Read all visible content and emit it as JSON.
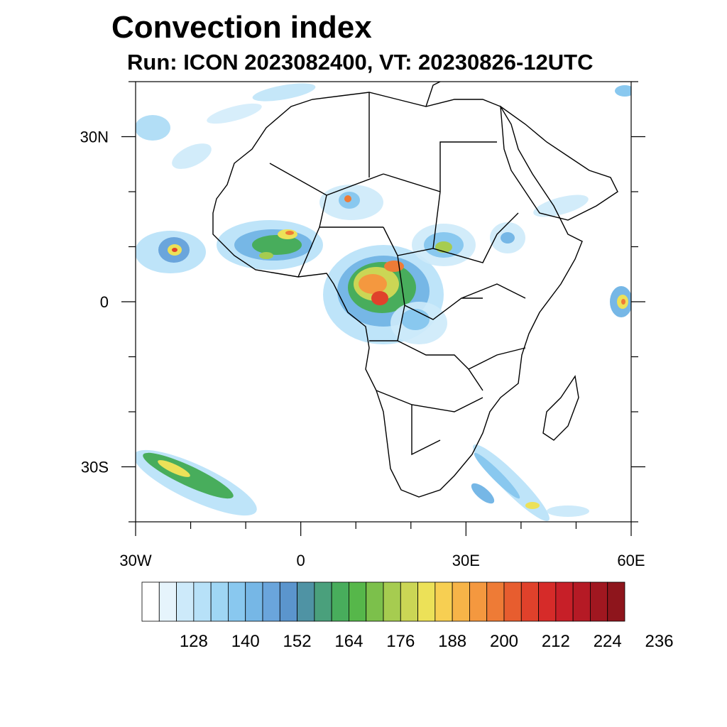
{
  "title": "Convection index",
  "subtitle": "Run: ICON 2023082400,  VT: 20230826-12UTC",
  "axes": {
    "lon_ticks": [
      {
        "value": -30,
        "label": "30W"
      },
      {
        "value": 0,
        "label": "0"
      },
      {
        "value": 30,
        "label": "30E"
      },
      {
        "value": 60,
        "label": "60E"
      }
    ],
    "lat_ticks": [
      {
        "value": 30,
        "label": "30N"
      },
      {
        "value": 0,
        "label": "0"
      },
      {
        "value": -30,
        "label": "30S"
      }
    ],
    "lon_range": [
      -30,
      60
    ],
    "lat_range": [
      -40,
      40
    ]
  },
  "colorbar": {
    "colors": [
      "#ffffff",
      "#e6f4fc",
      "#cdeafa",
      "#b7e1f8",
      "#9fd6f4",
      "#89c8ef",
      "#76b7e6",
      "#6aa5dc",
      "#5b95cd",
      "#4f93a4",
      "#4aa07c",
      "#48ad5c",
      "#56b74a",
      "#7cc04b",
      "#a6cc50",
      "#cbd655",
      "#ece158",
      "#f7cf52",
      "#f7b448",
      "#f4983f",
      "#ee7b36",
      "#e75d2f",
      "#e0412b",
      "#d62b29",
      "#c71f28",
      "#b51a25",
      "#a01720",
      "#8e151c"
    ],
    "labels": [
      "128",
      "140",
      "152",
      "164",
      "176",
      "188",
      "200",
      "212",
      "224",
      "236"
    ]
  },
  "colors": {
    "coast": "#000000",
    "low": "#9fd6f4",
    "mid": "#4aa07c",
    "high": "#ece158",
    "peak": "#e0412b"
  }
}
